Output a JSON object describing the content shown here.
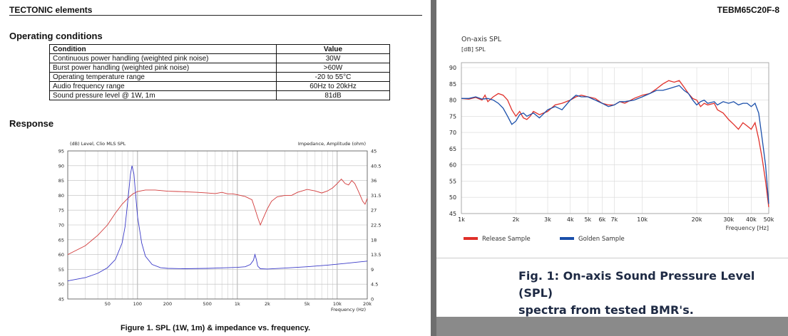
{
  "header": {
    "brand": "TECTONIC elements",
    "model": "TEBM65C20F-8"
  },
  "operating": {
    "title": "Operating conditions",
    "columns": [
      "Condition",
      "Value"
    ],
    "rows": [
      [
        "Continuous power handling (weighted pink noise)",
        "30W"
      ],
      [
        "Burst power handling (weighted pink noise)",
        ">60W"
      ],
      [
        "Operating temperature range",
        "-20 to 55°C"
      ],
      [
        "Audio frequency range",
        "60Hz to 20kHz"
      ],
      [
        "Sound pressure level @ 1W, 1m",
        "81dB"
      ]
    ]
  },
  "response": {
    "title": "Response"
  },
  "captions": {
    "fig1": "Figure 1. SPL (1W, 1m) & impedance vs. frequency.",
    "fig2_line1": "Fig. 1: On-axis Sound Pressure Level (SPL)",
    "fig2_line2": "spectra from tested BMR's."
  },
  "chart_data": [
    {
      "type": "line",
      "title": "",
      "ylabel": "(dB) Level, Clio MLS SPL",
      "y2label": "Impedance, Amplitude (ohm)",
      "xlabel": "Frequency (Hz)",
      "xscale": "log",
      "xlim": [
        20,
        20000
      ],
      "ylim": [
        45,
        95
      ],
      "y2lim": [
        0,
        45
      ],
      "x_ticks": [
        50,
        100,
        200,
        500,
        1000,
        2000,
        5000,
        10000,
        20000
      ],
      "x_tick_labels": [
        "50",
        "100",
        "200",
        "500",
        "1k",
        "2k",
        "5k",
        "10k",
        "20k"
      ],
      "y_ticks": [
        95,
        90,
        85,
        80,
        75,
        70,
        65,
        60,
        55,
        50,
        45
      ],
      "y2_ticks": [
        "45",
        "40.5",
        "36",
        "31.5",
        "27",
        "22.5",
        "18",
        "13.5",
        "9",
        "4.5",
        "0"
      ],
      "grid": true,
      "series": [
        {
          "axis": "left",
          "color": "#d23a3a",
          "points": [
            [
              20,
              60
            ],
            [
              30,
              63
            ],
            [
              40,
              66.5
            ],
            [
              50,
              70
            ],
            [
              60,
              74
            ],
            [
              70,
              77
            ],
            [
              80,
              79
            ],
            [
              90,
              80.5
            ],
            [
              100,
              81.3
            ],
            [
              120,
              81.8
            ],
            [
              150,
              81.8
            ],
            [
              200,
              81.4
            ],
            [
              250,
              81.3
            ],
            [
              300,
              81.2
            ],
            [
              400,
              81
            ],
            [
              500,
              80.8
            ],
            [
              600,
              80.6
            ],
            [
              700,
              81
            ],
            [
              800,
              80.5
            ],
            [
              900,
              80.5
            ],
            [
              1000,
              80.2
            ],
            [
              1200,
              79.6
            ],
            [
              1400,
              78.5
            ],
            [
              1500,
              75.5
            ],
            [
              1600,
              72.5
            ],
            [
              1700,
              70
            ],
            [
              1800,
              72
            ],
            [
              2000,
              75.5
            ],
            [
              2200,
              78
            ],
            [
              2500,
              79.5
            ],
            [
              3000,
              80
            ],
            [
              3500,
              80
            ],
            [
              4000,
              81
            ],
            [
              5000,
              82
            ],
            [
              6000,
              81.5
            ],
            [
              7000,
              80.8
            ],
            [
              8000,
              81.5
            ],
            [
              9000,
              82.5
            ],
            [
              10000,
              84
            ],
            [
              11000,
              85.5
            ],
            [
              12000,
              84
            ],
            [
              13000,
              83.5
            ],
            [
              14000,
              85
            ],
            [
              15000,
              84
            ],
            [
              16000,
              82
            ],
            [
              17000,
              80
            ],
            [
              18000,
              78
            ],
            [
              19000,
              77
            ],
            [
              20000,
              79
            ]
          ]
        },
        {
          "axis": "right",
          "color": "#3a3ac8",
          "points": [
            [
              20,
              5.5
            ],
            [
              30,
              6.5
            ],
            [
              40,
              7.8
            ],
            [
              50,
              9.5
            ],
            [
              60,
              12
            ],
            [
              70,
              17
            ],
            [
              75,
              22
            ],
            [
              80,
              30
            ],
            [
              85,
              38
            ],
            [
              88,
              40.5
            ],
            [
              92,
              38
            ],
            [
              95,
              33
            ],
            [
              100,
              25
            ],
            [
              110,
              17
            ],
            [
              120,
              13
            ],
            [
              140,
              10.5
            ],
            [
              170,
              9.5
            ],
            [
              200,
              9.3
            ],
            [
              300,
              9.2
            ],
            [
              500,
              9.3
            ],
            [
              800,
              9.5
            ],
            [
              1000,
              9.6
            ],
            [
              1200,
              9.8
            ],
            [
              1350,
              10.5
            ],
            [
              1450,
              11.8
            ],
            [
              1500,
              13.5
            ],
            [
              1550,
              12
            ],
            [
              1600,
              10
            ],
            [
              1700,
              9.2
            ],
            [
              2000,
              9.1
            ],
            [
              3000,
              9.4
            ],
            [
              5000,
              9.8
            ],
            [
              8000,
              10.3
            ],
            [
              12000,
              10.8
            ],
            [
              16000,
              11.2
            ],
            [
              20000,
              11.5
            ]
          ]
        }
      ]
    },
    {
      "type": "line",
      "title": "On-axis SPL",
      "ylabel": "[dB] SPL",
      "xlabel": "Frequency [Hz]",
      "xscale": "log",
      "xlim": [
        1000,
        50000
      ],
      "ylim": [
        45,
        90
      ],
      "x_ticks": [
        1000,
        2000,
        3000,
        4000,
        5000,
        6000,
        7000,
        10000,
        20000,
        30000,
        40000,
        50000
      ],
      "x_tick_labels": [
        "1k",
        "2k",
        "3k",
        "4k",
        "5k",
        "6k",
        "7k",
        "10k",
        "20k",
        "30k",
        "40k",
        "50k"
      ],
      "y_ticks": [
        90,
        85,
        80,
        75,
        70,
        65,
        60,
        55,
        50,
        45
      ],
      "grid": true,
      "legend_position": "bottom",
      "series": [
        {
          "name": "Release Sample",
          "color": "#e0302a",
          "points": [
            [
              1000,
              80.5
            ],
            [
              1100,
              80.3
            ],
            [
              1200,
              80.8
            ],
            [
              1300,
              80
            ],
            [
              1350,
              81.5
            ],
            [
              1400,
              79.5
            ],
            [
              1500,
              81
            ],
            [
              1600,
              82
            ],
            [
              1700,
              81.5
            ],
            [
              1800,
              80
            ],
            [
              1900,
              77
            ],
            [
              2000,
              75
            ],
            [
              2100,
              76.5
            ],
            [
              2200,
              74.5
            ],
            [
              2300,
              74
            ],
            [
              2400,
              75
            ],
            [
              2500,
              76.5
            ],
            [
              2700,
              75.5
            ],
            [
              3000,
              76.5
            ],
            [
              3300,
              78.5
            ],
            [
              3600,
              79
            ],
            [
              4000,
              80
            ],
            [
              4300,
              81
            ],
            [
              4600,
              81.5
            ],
            [
              5000,
              81
            ],
            [
              5500,
              80.5
            ],
            [
              6000,
              79
            ],
            [
              6500,
              78.5
            ],
            [
              7000,
              78.5
            ],
            [
              7500,
              79.5
            ],
            [
              8000,
              79
            ],
            [
              9000,
              80.5
            ],
            [
              10000,
              81.5
            ],
            [
              11000,
              82
            ],
            [
              12000,
              83.5
            ],
            [
              13000,
              85
            ],
            [
              14000,
              86
            ],
            [
              15000,
              85.5
            ],
            [
              16000,
              86
            ],
            [
              17000,
              84
            ],
            [
              18000,
              82
            ],
            [
              19000,
              80.5
            ],
            [
              20000,
              80
            ],
            [
              21000,
              78
            ],
            [
              22000,
              79
            ],
            [
              23000,
              78.5
            ],
            [
              25000,
              79
            ],
            [
              26000,
              77
            ],
            [
              28000,
              76
            ],
            [
              30000,
              74
            ],
            [
              32000,
              72.5
            ],
            [
              34000,
              71
            ],
            [
              36000,
              73
            ],
            [
              38000,
              72
            ],
            [
              40000,
              71
            ],
            [
              42000,
              73
            ],
            [
              44000,
              68
            ],
            [
              46000,
              62
            ],
            [
              48000,
              55
            ],
            [
              50000,
              47
            ]
          ]
        },
        {
          "name": "Golden Sample",
          "color": "#1a4faa",
          "points": [
            [
              1000,
              80.5
            ],
            [
              1100,
              80.5
            ],
            [
              1200,
              81
            ],
            [
              1300,
              80.3
            ],
            [
              1400,
              80.5
            ],
            [
              1500,
              80
            ],
            [
              1600,
              79
            ],
            [
              1700,
              77.5
            ],
            [
              1800,
              75
            ],
            [
              1900,
              72.5
            ],
            [
              2000,
              73.5
            ],
            [
              2100,
              75.5
            ],
            [
              2200,
              76
            ],
            [
              2300,
              75
            ],
            [
              2500,
              76
            ],
            [
              2700,
              74.5
            ],
            [
              3000,
              77
            ],
            [
              3300,
              78
            ],
            [
              3600,
              77
            ],
            [
              4000,
              80
            ],
            [
              4300,
              81.5
            ],
            [
              4600,
              81
            ],
            [
              5000,
              81
            ],
            [
              5500,
              80
            ],
            [
              6000,
              79
            ],
            [
              6500,
              78
            ],
            [
              7000,
              78.5
            ],
            [
              7500,
              79.5
            ],
            [
              8000,
              79.5
            ],
            [
              9000,
              80
            ],
            [
              10000,
              81
            ],
            [
              11000,
              82
            ],
            [
              12000,
              83
            ],
            [
              13000,
              83
            ],
            [
              14000,
              83.5
            ],
            [
              15000,
              84
            ],
            [
              16000,
              84.5
            ],
            [
              17000,
              83
            ],
            [
              18000,
              82
            ],
            [
              19000,
              80
            ],
            [
              20000,
              78.5
            ],
            [
              21000,
              79.5
            ],
            [
              22000,
              80
            ],
            [
              23000,
              79
            ],
            [
              25000,
              79.5
            ],
            [
              26000,
              78.5
            ],
            [
              28000,
              79.5
            ],
            [
              30000,
              79
            ],
            [
              32000,
              79.5
            ],
            [
              34000,
              78.5
            ],
            [
              36000,
              79
            ],
            [
              38000,
              79
            ],
            [
              40000,
              78
            ],
            [
              42000,
              79
            ],
            [
              44000,
              76
            ],
            [
              46000,
              68
            ],
            [
              48000,
              60
            ],
            [
              50000,
              48
            ]
          ]
        }
      ]
    }
  ]
}
